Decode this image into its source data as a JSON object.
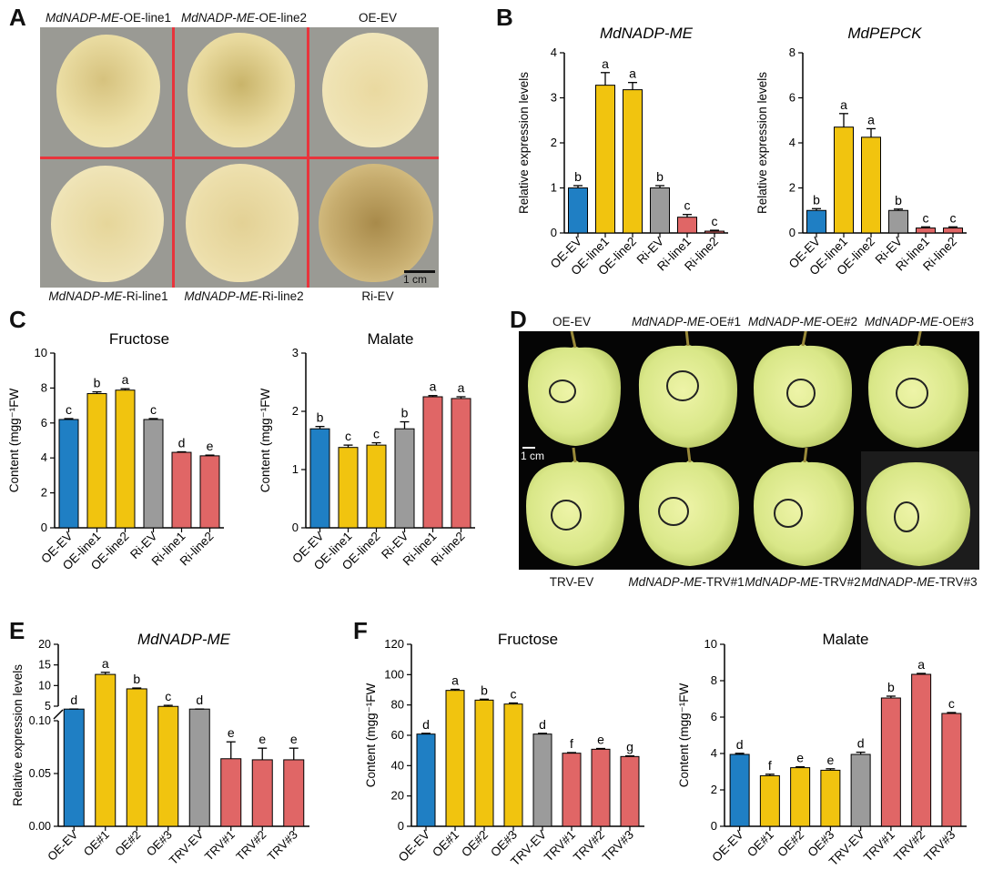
{
  "panels": {
    "a": "A",
    "b": "B",
    "c": "C",
    "d": "D",
    "e": "E",
    "f": "F"
  },
  "panel_a": {
    "captions_top": [
      {
        "gene": "MdNADP-ME",
        "rest": "-OE-line1"
      },
      {
        "gene": "MdNADP-ME",
        "rest": "-OE-line2"
      },
      {
        "gene": "",
        "rest": "OE-EV"
      }
    ],
    "captions_bottom": [
      {
        "gene": "MdNADP-ME",
        "rest": "-Ri-line1"
      },
      {
        "gene": "MdNADP-ME",
        "rest": "-Ri-line2"
      },
      {
        "gene": "",
        "rest": "Ri-EV"
      }
    ],
    "scale_bar": "1 cm",
    "colors": {
      "divider": "#e8343c",
      "background": "#9a9a94",
      "callus": "#e9dca8"
    }
  },
  "panel_d": {
    "captions_top": [
      {
        "gene": "",
        "rest": "OE-EV"
      },
      {
        "gene": "MdNADP-ME",
        "rest": "-OE#1"
      },
      {
        "gene": "MdNADP-ME",
        "rest": "-OE#2"
      },
      {
        "gene": "MdNADP-ME",
        "rest": "-OE#3"
      }
    ],
    "captions_bottom": [
      {
        "gene": "",
        "rest": "TRV-EV"
      },
      {
        "gene": "MdNADP-ME",
        "rest": "-TRV#1"
      },
      {
        "gene": "MdNADP-ME",
        "rest": "-TRV#2"
      },
      {
        "gene": "MdNADP-ME",
        "rest": "-TRV#3"
      }
    ],
    "scale_bar": "1 cm",
    "colors": {
      "background": "#050505",
      "apple": "#dde98a"
    }
  },
  "chart_data": [
    {
      "id": "b1",
      "type": "bar",
      "title": "MdNADP-ME",
      "title_italic": true,
      "ylabel": "Relative expression levels",
      "ylim": [
        0,
        4
      ],
      "yticks": [
        "0",
        "1",
        "2",
        "3",
        "4"
      ],
      "categories": [
        "OE-EV",
        "OE-line1",
        "OE-line2",
        "Ri-EV",
        "Ri-line1",
        "Ri-line2"
      ],
      "values": [
        1.0,
        3.28,
        3.18,
        1.0,
        0.35,
        0.04
      ],
      "errors": [
        0.05,
        0.28,
        0.16,
        0.05,
        0.06,
        0.02
      ],
      "letters": [
        "b",
        "a",
        "a",
        "b",
        "c",
        "c"
      ],
      "colors": [
        "#1f7fc4",
        "#f1c40f",
        "#f1c40f",
        "#9b9b9b",
        "#e06666",
        "#e06666"
      ]
    },
    {
      "id": "b2",
      "type": "bar",
      "title": "MdPEPCK",
      "title_italic": true,
      "ylabel": "Relative expression levels",
      "ylim": [
        0,
        8
      ],
      "yticks": [
        "0",
        "2",
        "4",
        "6",
        "8"
      ],
      "categories": [
        "OE-EV",
        "OE-line1",
        "OE-line2",
        "Ri-EV",
        "Ri-line1",
        "Ri-line2"
      ],
      "values": [
        1.0,
        4.7,
        4.25,
        1.0,
        0.22,
        0.22
      ],
      "errors": [
        0.08,
        0.6,
        0.38,
        0.06,
        0.05,
        0.05
      ],
      "letters": [
        "b",
        "a",
        "a",
        "b",
        "c",
        "c"
      ],
      "colors": [
        "#1f7fc4",
        "#f1c40f",
        "#f1c40f",
        "#9b9b9b",
        "#e06666",
        "#e06666"
      ]
    },
    {
      "id": "c1",
      "type": "bar",
      "title": "Fructose",
      "title_italic": false,
      "ylabel": "Content (mgg⁻¹FW",
      "ylim": [
        0,
        10
      ],
      "yticks": [
        "0",
        "2",
        "4",
        "6",
        "8",
        "10"
      ],
      "categories": [
        "OE-EV",
        "OE-line1",
        "OE-line2",
        "Ri-EV",
        "Ri-line1",
        "Ri-line2"
      ],
      "values": [
        6.2,
        7.68,
        7.88,
        6.2,
        4.32,
        4.12
      ],
      "errors": [
        0.05,
        0.1,
        0.08,
        0.05,
        0.03,
        0.04
      ],
      "letters": [
        "c",
        "b",
        "a",
        "c",
        "d",
        "e"
      ],
      "colors": [
        "#1f7fc4",
        "#f1c40f",
        "#f1c40f",
        "#9b9b9b",
        "#e06666",
        "#e06666"
      ]
    },
    {
      "id": "c2",
      "type": "bar",
      "title": "Malate",
      "title_italic": false,
      "ylabel": "Content (mgg⁻¹FW",
      "ylim": [
        0,
        3
      ],
      "yticks": [
        "0",
        "1",
        "2",
        "3"
      ],
      "categories": [
        "OE-EV",
        "OE-line1",
        "OE-line2",
        "Ri-EV",
        "Ri-line1",
        "Ri-line2"
      ],
      "values": [
        1.7,
        1.38,
        1.42,
        1.7,
        2.25,
        2.22
      ],
      "errors": [
        0.04,
        0.04,
        0.04,
        0.12,
        0.02,
        0.03
      ],
      "letters": [
        "b",
        "c",
        "c",
        "b",
        "a",
        "a"
      ],
      "colors": [
        "#1f7fc4",
        "#f1c40f",
        "#f1c40f",
        "#9b9b9b",
        "#e06666",
        "#e06666"
      ]
    },
    {
      "id": "e",
      "type": "bar",
      "title": "MdNADP-ME",
      "title_italic": true,
      "ylabel": "Relative expression levels",
      "axis_break": true,
      "ylim_lower": [
        0,
        0.1
      ],
      "yticks_lower": [
        "0.00",
        "0.05",
        "0.10"
      ],
      "ylim_upper": [
        5,
        20
      ],
      "yticks_upper": [
        "5",
        "10",
        "15",
        "20"
      ],
      "categories": [
        "OE-EV",
        "OE#1",
        "OE#2",
        "OE#3",
        "TRV-EV",
        "TRV#1",
        "TRV#2",
        "TRV#3"
      ],
      "values": [
        1.0,
        12.7,
        9.2,
        4.7,
        1.0,
        0.064,
        0.063,
        0.063
      ],
      "errors": [
        0.1,
        0.5,
        0.2,
        0.5,
        0.1,
        0.016,
        0.011,
        0.011
      ],
      "letters": [
        "d",
        "a",
        "b",
        "c",
        "d",
        "e",
        "e",
        "e"
      ],
      "colors": [
        "#1f7fc4",
        "#f1c40f",
        "#f1c40f",
        "#f1c40f",
        "#9b9b9b",
        "#e06666",
        "#e06666",
        "#e06666"
      ]
    },
    {
      "id": "f1",
      "type": "bar",
      "title": "Fructose",
      "title_italic": false,
      "ylabel": "Content (mgg⁻¹FW",
      "ylim": [
        0,
        120
      ],
      "yticks": [
        "0",
        "20",
        "40",
        "60",
        "80",
        "100",
        "120"
      ],
      "categories": [
        "OE-EV",
        "OE#1",
        "OE#2",
        "OE#3",
        "TRV-EV",
        "TRV#1",
        "TRV#2",
        "TRV#3"
      ],
      "values": [
        60.8,
        89.6,
        83.2,
        80.6,
        60.8,
        48.2,
        50.8,
        46.0
      ],
      "errors": [
        0.5,
        0.7,
        0.6,
        0.7,
        0.5,
        0.4,
        0.5,
        0.4
      ],
      "letters": [
        "d",
        "a",
        "b",
        "c",
        "d",
        "f",
        "e",
        "g"
      ],
      "colors": [
        "#1f7fc4",
        "#f1c40f",
        "#f1c40f",
        "#f1c40f",
        "#9b9b9b",
        "#e06666",
        "#e06666",
        "#e06666"
      ]
    },
    {
      "id": "f2",
      "type": "bar",
      "title": "Malate",
      "title_italic": false,
      "ylabel": "Content (mgg⁻¹FW",
      "ylim": [
        0,
        10
      ],
      "yticks": [
        "0",
        "2",
        "4",
        "6",
        "8",
        "10"
      ],
      "categories": [
        "OE-EV",
        "OE#1",
        "OE#2",
        "OE#3",
        "TRV-EV",
        "TRV#1",
        "TRV#2",
        "TRV#3"
      ],
      "values": [
        3.95,
        2.78,
        3.22,
        3.08,
        3.95,
        7.05,
        8.35,
        6.2
      ],
      "errors": [
        0.06,
        0.08,
        0.05,
        0.08,
        0.12,
        0.1,
        0.05,
        0.05
      ],
      "letters": [
        "d",
        "f",
        "e",
        "e",
        "d",
        "b",
        "a",
        "c"
      ],
      "colors": [
        "#1f7fc4",
        "#f1c40f",
        "#f1c40f",
        "#f1c40f",
        "#9b9b9b",
        "#e06666",
        "#e06666",
        "#e06666"
      ]
    }
  ]
}
